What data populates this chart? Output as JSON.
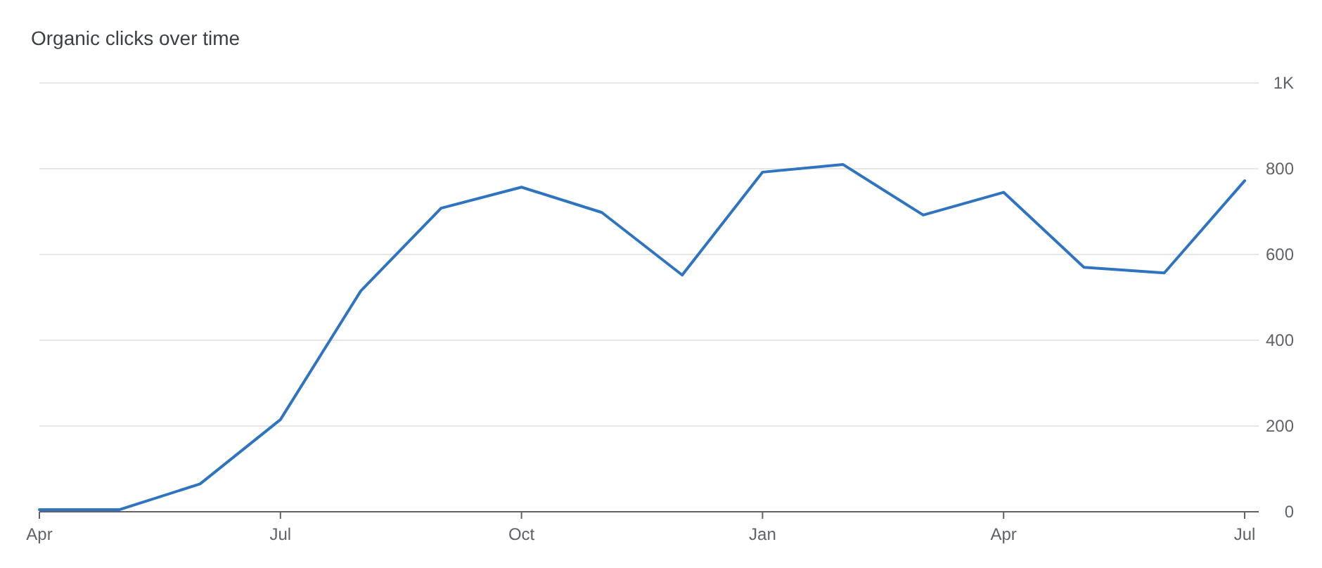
{
  "chart_data": {
    "type": "line",
    "title": "Organic clicks over time",
    "categories": [
      "Apr",
      null,
      null,
      "Jul",
      null,
      null,
      "Oct",
      null,
      null,
      "Jan",
      null,
      null,
      "Apr",
      null,
      null,
      "Jul"
    ],
    "series": [
      {
        "color": "#2f74c0",
        "values": [
          5,
          5,
          65,
          215,
          515,
          708,
          757,
          698,
          552,
          792,
          810,
          692,
          745,
          570,
          557,
          772
        ]
      }
    ],
    "ylim": [
      0,
      1000
    ],
    "yticks": [
      0,
      200,
      400,
      600,
      800,
      {
        "value": 1000,
        "label": "1K"
      }
    ],
    "grid": "y",
    "marker": "none",
    "line_style": "solid"
  }
}
